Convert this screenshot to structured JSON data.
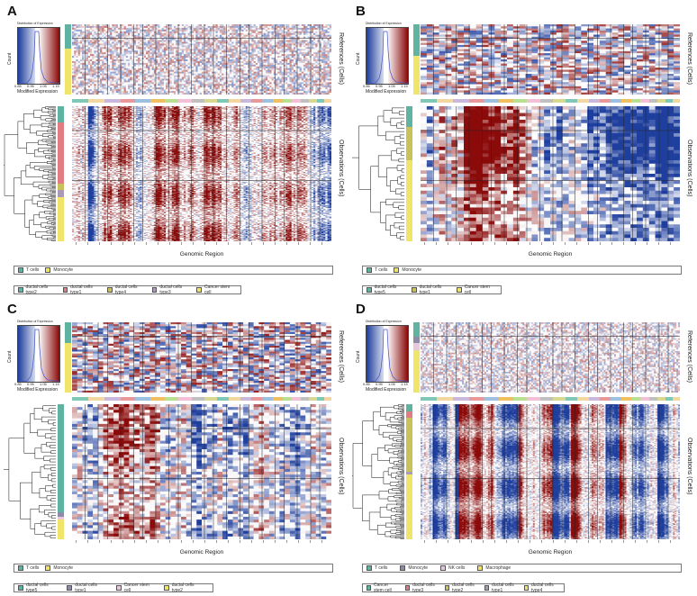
{
  "chart_data": [
    {
      "type": "heatmap",
      "panel_label": "A",
      "xlabel": "Genomic Region",
      "reference_label": "References (Cells)",
      "observation_label": "Observations (Cells)",
      "color_key": {
        "title": "Distribution of Expression",
        "xlabel": "Modified Expression",
        "ylabel": "Count",
        "ticks": [
          "0.85",
          "0.95",
          "1.05",
          "1.15"
        ],
        "low_color": "#1f3f9e",
        "mid_color": "#ffffff",
        "high_color": "#8b0a0a"
      },
      "reference_groups": [
        {
          "name": "T cells",
          "color": "#5fb3a0"
        },
        {
          "name": "Monocyte",
          "color": "#f0e46a"
        }
      ],
      "observation_groups": [
        {
          "name": "ductal cells type2",
          "color": "#5fb3a0"
        },
        {
          "name": "ductal cells type1",
          "color": "#e07c82"
        },
        {
          "name": "ductal cells type4",
          "color": "#c9c25a"
        },
        {
          "name": "ductal cells type3",
          "color": "#a99bb8"
        },
        {
          "name": "Cancer stem cell",
          "color": "#f0e46a"
        }
      ]
    },
    {
      "type": "heatmap",
      "panel_label": "B",
      "xlabel": "Genomic Region",
      "reference_label": "References (Cells)",
      "observation_label": "Observations (Cells)",
      "color_key": {
        "title": "Distribution of Expression",
        "xlabel": "Modified Expression",
        "ylabel": "Count",
        "ticks": [
          "0.85",
          "0.95",
          "1.05",
          "1.15"
        ],
        "low_color": "#1f3f9e",
        "mid_color": "#ffffff",
        "high_color": "#8b0a0a"
      },
      "reference_groups": [
        {
          "name": "T cells",
          "color": "#5fb3a0"
        },
        {
          "name": "Monocyte",
          "color": "#f0e46a"
        }
      ],
      "observation_groups": [
        {
          "name": "ductal cells type5",
          "color": "#5fb3a0"
        },
        {
          "name": "ductal cells type1",
          "color": "#c9c25a"
        },
        {
          "name": "Cancer stem cell",
          "color": "#f0e46a"
        }
      ]
    },
    {
      "type": "heatmap",
      "panel_label": "C",
      "xlabel": "Genomic Region",
      "reference_label": "References (Cells)",
      "observation_label": "Observations (Cells)",
      "color_key": {
        "title": "Distribution of Expression",
        "xlabel": "Modified Expression",
        "ylabel": "Count",
        "ticks": [
          "0.85",
          "0.95",
          "1.05",
          "1.15"
        ],
        "low_color": "#1f3f9e",
        "mid_color": "#ffffff",
        "high_color": "#8b0a0a"
      },
      "reference_groups": [
        {
          "name": "T cells",
          "color": "#5fb3a0"
        },
        {
          "name": "Monocyte",
          "color": "#f0e46a"
        }
      ],
      "observation_groups": [
        {
          "name": "ductal cells type5",
          "color": "#5fb3a0"
        },
        {
          "name": "ductal cells type1",
          "color": "#8e8aa8"
        },
        {
          "name": "Cancer stem cell",
          "color": "#e8c8dc"
        },
        {
          "name": "ductal cells type2",
          "color": "#f0e46a"
        }
      ]
    },
    {
      "type": "heatmap",
      "panel_label": "D",
      "xlabel": "Genomic Region",
      "reference_label": "References (Cells)",
      "observation_label": "Observations (Cells)",
      "color_key": {
        "title": "Distribution of Expression",
        "xlabel": "Modified Expression",
        "ylabel": "Count",
        "ticks": [
          "0.85",
          "0.95",
          "1.05",
          "1.15"
        ],
        "low_color": "#1f3f9e",
        "mid_color": "#ffffff",
        "high_color": "#8b0a0a"
      },
      "reference_groups": [
        {
          "name": "T cells",
          "color": "#5fb3a0"
        },
        {
          "name": "Monocyte",
          "color": "#8e8aa8"
        },
        {
          "name": "NK cells",
          "color": "#e8c8dc"
        },
        {
          "name": "Macrophage",
          "color": "#f0e46a"
        }
      ],
      "observation_groups": [
        {
          "name": "Cancer stem cell",
          "color": "#5fb3a0"
        },
        {
          "name": "ductal cells type3",
          "color": "#e07c82"
        },
        {
          "name": "ductal cells type2",
          "color": "#c9c25a"
        },
        {
          "name": "ductal cells type1",
          "color": "#a99bb8"
        },
        {
          "name": "ductal cells type4",
          "color": "#f0e46a"
        }
      ]
    }
  ]
}
